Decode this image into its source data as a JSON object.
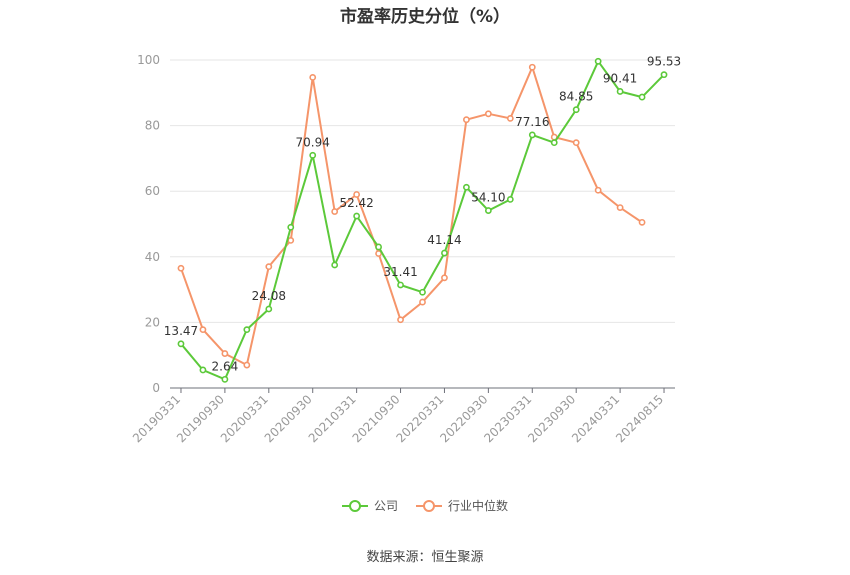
{
  "chart_data": {
    "type": "line",
    "title": "市盈率历史分位（%）",
    "x": [
      "20190331",
      "20190630",
      "20190930",
      "20191231",
      "20200331",
      "20200630",
      "20200930",
      "20201231",
      "20210331",
      "20210630",
      "20210930",
      "20211231",
      "20220331",
      "20220630",
      "20220930",
      "20221231",
      "20230331",
      "20230630",
      "20230930",
      "20231231",
      "20240331",
      "20240630",
      "20240815"
    ],
    "x_tick_labels": [
      "20190331",
      "20190930",
      "20200331",
      "20200930",
      "20210331",
      "20210930",
      "20220331",
      "20220930",
      "20230331",
      "20230930",
      "20240331",
      "20240815"
    ],
    "y_ticks": [
      0,
      20,
      40,
      60,
      80,
      100
    ],
    "ylim": [
      0,
      100
    ],
    "grid": true,
    "legend_position": "bottom",
    "series": [
      {
        "name": "公司",
        "color": "#5cc93a",
        "values": [
          13.47,
          5.5,
          2.64,
          17.8,
          24.08,
          49.0,
          70.94,
          37.5,
          52.42,
          43.0,
          31.41,
          29.2,
          41.14,
          61.2,
          54.1,
          57.5,
          77.16,
          74.8,
          84.85,
          99.6,
          90.41,
          88.7,
          95.53
        ],
        "data_labels": [
          "13.47",
          "",
          "2.64",
          "",
          "24.08",
          "",
          "70.94",
          "",
          "52.42",
          "",
          "31.41",
          "",
          "41.14",
          "",
          "54.10",
          "",
          "77.16",
          "",
          "84.85",
          "",
          "90.41",
          "",
          "95.53"
        ]
      },
      {
        "name": "行业中位数",
        "color": "#f5956a",
        "values": [
          36.5,
          17.8,
          10.5,
          7.0,
          37.0,
          45.0,
          94.7,
          53.8,
          59.0,
          41.0,
          20.8,
          26.2,
          33.6,
          81.8,
          83.6,
          82.2,
          97.8,
          76.5,
          74.8,
          60.3,
          55.0,
          50.5,
          null
        ]
      }
    ],
    "source": "数据来源：恒生聚源"
  }
}
